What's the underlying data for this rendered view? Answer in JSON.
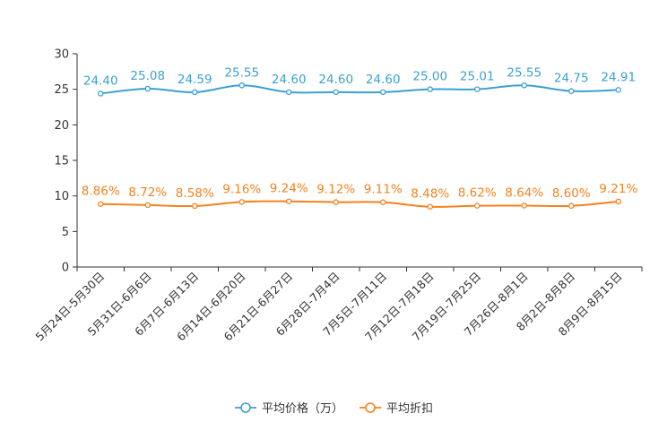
{
  "chart_data": {
    "type": "line",
    "title": "",
    "xlabel": "",
    "ylabel": "",
    "ylim": [
      0,
      30
    ],
    "yticks": [
      0,
      5,
      10,
      15,
      20,
      25,
      30
    ],
    "grid": false,
    "legend_position": "bottom-center",
    "categories": [
      "5月24日-5月30日",
      "5月31日-6月6日",
      "6月7日-6月13日",
      "6月14日-6月20日",
      "6月21日-6月27日",
      "6月28日-7月4日",
      "7月5日-7月11日",
      "7月12日-7月18日",
      "7月19日-7月25日",
      "7月26日-8月1日",
      "8月2日-8月8日",
      "8月9日-8月15日"
    ],
    "series": [
      {
        "name": "平均价格（万）",
        "color": "#3ca0d2",
        "values": [
          24.4,
          25.08,
          24.59,
          25.55,
          24.6,
          24.6,
          24.6,
          25.0,
          25.01,
          25.55,
          24.75,
          24.91
        ],
        "labels": [
          "24.40",
          "25.08",
          "24.59",
          "25.55",
          "24.60",
          "24.60",
          "24.60",
          "25.00",
          "25.01",
          "25.55",
          "24.75",
          "24.91"
        ]
      },
      {
        "name": "平均折扣",
        "color": "#f5821e",
        "values": [
          8.86,
          8.72,
          8.58,
          9.16,
          9.24,
          9.12,
          9.11,
          8.48,
          8.62,
          8.64,
          8.6,
          9.21
        ],
        "labels": [
          "8.86%",
          "8.72%",
          "8.58%",
          "9.16%",
          "9.24%",
          "9.12%",
          "9.11%",
          "8.48%",
          "8.62%",
          "8.64%",
          "8.60%",
          "9.21%"
        ]
      }
    ]
  }
}
